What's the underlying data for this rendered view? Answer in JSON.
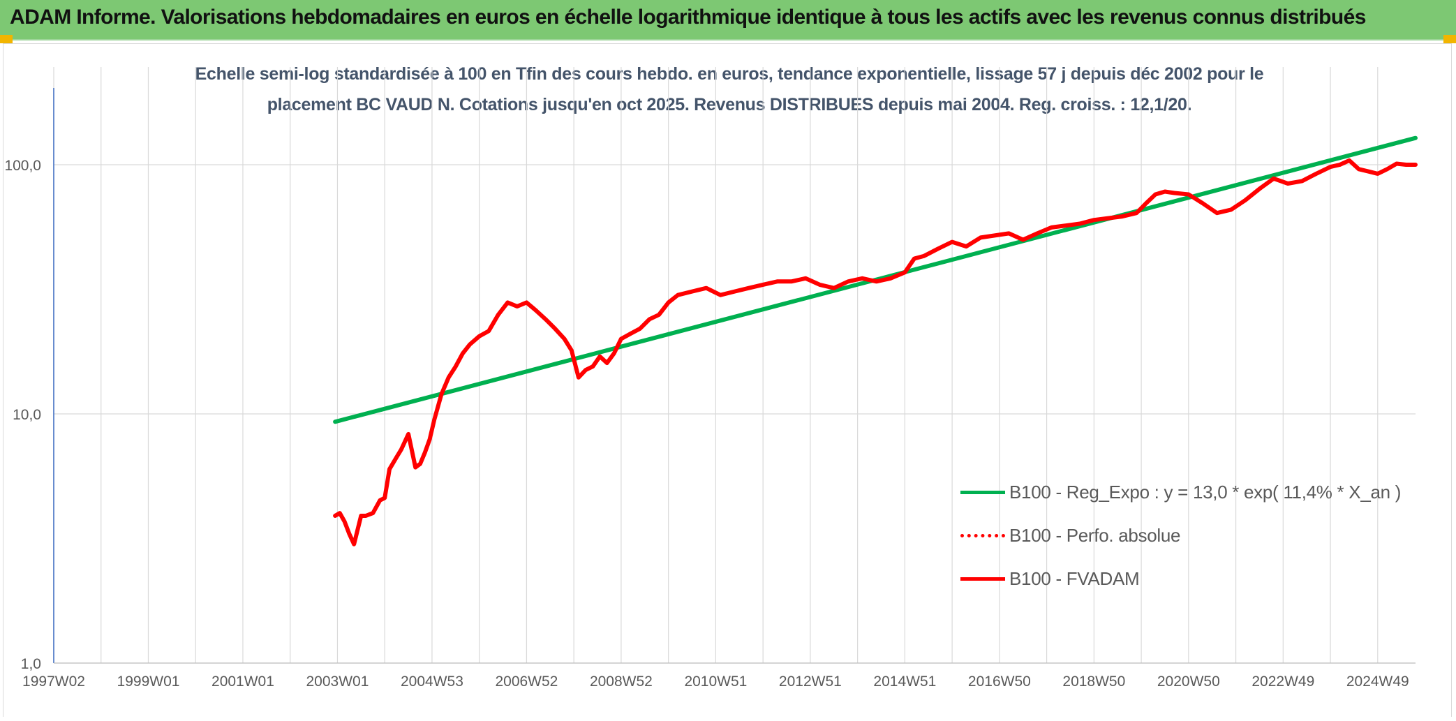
{
  "banner": {
    "title": "ADAM Informe. Valorisations hebdomadaires en euros en échelle logarithmique identique à tous les actifs avec les revenus connus distribués"
  },
  "colors": {
    "banner": "#7dc873",
    "accent_corner": "#f2b500",
    "trend_line": "#00b050",
    "fvadam_line": "#ff0000",
    "title_text": "#44546a",
    "axis_text": "#595959",
    "gridline": "#d9d9d9"
  },
  "chart_data": {
    "type": "line",
    "title_lines": [
      "Echelle semi-log standardisée à 100 en Tfin des cours hebdo. en euros, tendance exponentielle, lissage 57 j depuis déc 2002 pour le",
      "placement BC VAUD N. Cotations jusqu'en oct 2025. Revenus DISTRIBUES depuis mai 2004. Reg. croiss. : 12,1/20."
    ],
    "y_scale": "log",
    "ylim": [
      1,
      200
    ],
    "xlim": [
      1997.0,
      2025.8
    ],
    "y_ticks": [
      {
        "value": 1,
        "label": "1,0"
      },
      {
        "value": 10,
        "label": "10,0"
      },
      {
        "value": 100,
        "label": "100,0"
      }
    ],
    "x_ticks": [
      {
        "value": 1997.0,
        "label": "1997W02"
      },
      {
        "value": 1999.0,
        "label": "1999W01"
      },
      {
        "value": 2001.0,
        "label": "2001W01"
      },
      {
        "value": 2003.0,
        "label": "2003W01"
      },
      {
        "value": 2005.0,
        "label": "2004W53"
      },
      {
        "value": 2007.0,
        "label": "2006W52"
      },
      {
        "value": 2009.0,
        "label": "2008W52"
      },
      {
        "value": 2011.0,
        "label": "2010W51"
      },
      {
        "value": 2013.0,
        "label": "2012W51"
      },
      {
        "value": 2015.0,
        "label": "2014W51"
      },
      {
        "value": 2017.0,
        "label": "2016W50"
      },
      {
        "value": 2019.0,
        "label": "2018W50"
      },
      {
        "value": 2021.0,
        "label": "2020W50"
      },
      {
        "value": 2023.0,
        "label": "2022W49"
      },
      {
        "value": 2025.0,
        "label": "2024W49"
      }
    ],
    "grid": true,
    "legend_position": "bottom-right",
    "series": [
      {
        "name": "B100 - Reg_Expo : y = 13,0 * exp( 11,4% *  X_an )",
        "style": "solid",
        "color": "#00b050",
        "x": [
          2002.95,
          2025.8
        ],
        "y": [
          9.3,
          128.0
        ]
      },
      {
        "name": "B100 - Perfo. absolue",
        "style": "dotted",
        "color": "#ff0000",
        "x": [],
        "y": []
      },
      {
        "name": "B100 - FVADAM",
        "style": "solid",
        "color": "#ff0000",
        "x": [
          2002.95,
          2003.05,
          2003.15,
          2003.25,
          2003.35,
          2003.5,
          2003.6,
          2003.75,
          2003.9,
          2004.0,
          2004.1,
          2004.25,
          2004.35,
          2004.5,
          2004.65,
          2004.75,
          2004.85,
          2004.95,
          2005.05,
          2005.2,
          2005.35,
          2005.5,
          2005.65,
          2005.8,
          2006.0,
          2006.2,
          2006.4,
          2006.6,
          2006.8,
          2007.0,
          2007.2,
          2007.4,
          2007.6,
          2007.8,
          2007.95,
          2008.1,
          2008.25,
          2008.4,
          2008.55,
          2008.7,
          2008.85,
          2009.0,
          2009.2,
          2009.4,
          2009.6,
          2009.8,
          2010.0,
          2010.2,
          2010.5,
          2010.8,
          2011.1,
          2011.4,
          2011.7,
          2012.0,
          2012.3,
          2012.6,
          2012.9,
          2013.2,
          2013.5,
          2013.8,
          2014.1,
          2014.4,
          2014.7,
          2015.0,
          2015.2,
          2015.4,
          2015.7,
          2016.0,
          2016.3,
          2016.6,
          2016.9,
          2017.2,
          2017.5,
          2017.8,
          2018.1,
          2018.4,
          2018.7,
          2019.0,
          2019.3,
          2019.6,
          2019.9,
          2020.1,
          2020.3,
          2020.5,
          2020.7,
          2021.0,
          2021.3,
          2021.6,
          2021.9,
          2022.2,
          2022.5,
          2022.8,
          2023.1,
          2023.4,
          2023.7,
          2024.0,
          2024.2,
          2024.4,
          2024.6,
          2024.8,
          2025.0,
          2025.2,
          2025.4,
          2025.6,
          2025.8
        ],
        "y": [
          3.9,
          4.0,
          3.7,
          3.3,
          3.0,
          3.9,
          3.9,
          4.0,
          4.5,
          4.6,
          6.0,
          6.7,
          7.2,
          8.3,
          6.1,
          6.3,
          7.0,
          7.9,
          9.5,
          12.0,
          14.0,
          15.5,
          17.5,
          19.0,
          20.5,
          21.5,
          25.0,
          28.0,
          27.0,
          28.0,
          26.0,
          24.0,
          22.0,
          20.0,
          18.0,
          14.0,
          15.0,
          15.5,
          17.0,
          16.0,
          17.5,
          20.0,
          21.0,
          22.0,
          24.0,
          25.0,
          28.0,
          30.0,
          31.0,
          32.0,
          30.0,
          31.0,
          32.0,
          33.0,
          34.0,
          34.0,
          35.0,
          33.0,
          32.0,
          34.0,
          35.0,
          34.0,
          35.0,
          37.0,
          42.0,
          43.0,
          46.0,
          49.0,
          47.0,
          51.0,
          52.0,
          53.0,
          50.0,
          53.0,
          56.0,
          57.0,
          58.0,
          60.0,
          61.0,
          62.0,
          64.0,
          70.0,
          76.0,
          78.0,
          77.0,
          76.0,
          70.0,
          64.0,
          66.0,
          72.0,
          80.0,
          88.0,
          84.0,
          86.0,
          92.0,
          98.0,
          100.0,
          104.0,
          96.0,
          94.0,
          92.0,
          96.0,
          101.0,
          100.0,
          100.0
        ]
      }
    ]
  }
}
